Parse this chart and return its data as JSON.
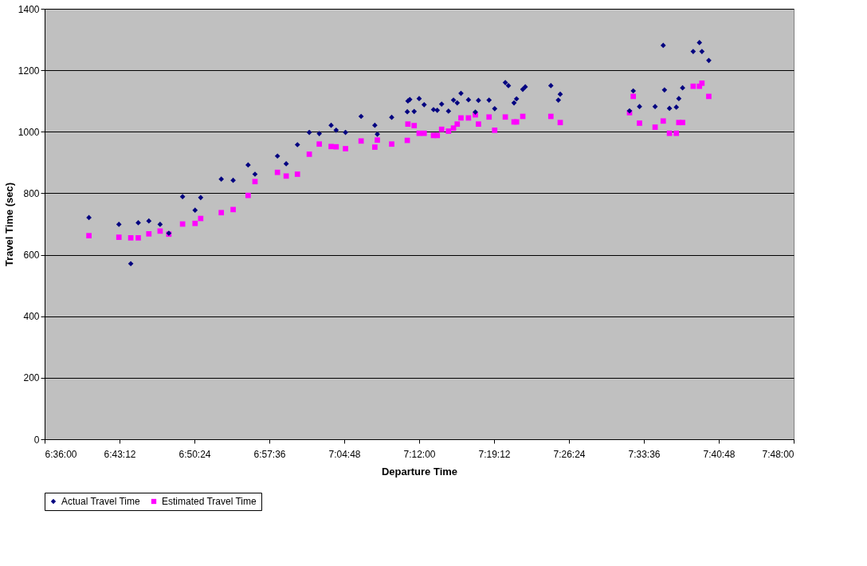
{
  "chart_data": {
    "type": "scatter",
    "xlabel": "Departure Time",
    "ylabel": "Travel Time (sec)",
    "xlim": [
      6.6,
      7.8
    ],
    "xticks": [
      {
        "value": 6.6,
        "label": "6:36:00"
      },
      {
        "value": 6.72,
        "label": "6:43:12"
      },
      {
        "value": 6.84,
        "label": "6:50:24"
      },
      {
        "value": 6.96,
        "label": "6:57:36"
      },
      {
        "value": 7.08,
        "label": "7:04:48"
      },
      {
        "value": 7.2,
        "label": "7:12:00"
      },
      {
        "value": 7.32,
        "label": "7:19:12"
      },
      {
        "value": 7.44,
        "label": "7:26:24"
      },
      {
        "value": 7.56,
        "label": "7:33:36"
      },
      {
        "value": 7.68,
        "label": "7:40:48"
      },
      {
        "value": 7.8,
        "label": "7:48:00"
      }
    ],
    "ylim": [
      0,
      1400
    ],
    "yticks": [
      0,
      200,
      400,
      600,
      800,
      1000,
      1200,
      1400
    ],
    "grid": "y",
    "legend": "bottom",
    "series": [
      {
        "name": "Actual Travel Time",
        "color": "#000080",
        "marker": "diamond",
        "x": [
          6.671,
          6.719,
          6.738,
          6.75,
          6.767,
          6.785,
          6.799,
          6.821,
          6.841,
          6.85,
          6.883,
          6.902,
          6.926,
          6.937,
          6.973,
          6.987,
          7.005,
          7.024,
          7.04,
          7.059,
          7.067,
          7.082,
          7.107,
          7.129,
          7.133,
          7.156,
          7.181,
          7.182,
          7.185,
          7.192,
          7.2,
          7.208,
          7.223,
          7.229,
          7.236,
          7.247,
          7.255,
          7.261,
          7.267,
          7.279,
          7.29,
          7.295,
          7.312,
          7.321,
          7.338,
          7.343,
          7.352,
          7.356,
          7.366,
          7.37,
          7.411,
          7.423,
          7.426,
          7.537,
          7.543,
          7.553,
          7.578,
          7.591,
          7.593,
          7.601,
          7.612,
          7.616,
          7.622,
          7.639,
          7.649,
          7.653,
          7.664
        ],
        "values": [
          721,
          699,
          571,
          704,
          710,
          699,
          670,
          789,
          745,
          786,
          846,
          842,
          892,
          862,
          921,
          896,
          958,
          998,
          994,
          1021,
          1005,
          998,
          1050,
          1021,
          992,
          1047,
          1065,
          1100,
          1105,
          1066,
          1108,
          1088,
          1072,
          1070,
          1090,
          1067,
          1103,
          1094,
          1125,
          1104,
          1064,
          1102,
          1103,
          1075,
          1160,
          1150,
          1094,
          1107,
          1138,
          1146,
          1150,
          1103,
          1122,
          1068,
          1133,
          1082,
          1082,
          1281,
          1136,
          1076,
          1080,
          1108,
          1143,
          1261,
          1290,
          1261,
          1232
        ]
      },
      {
        "name": "Estimated Travel Time",
        "color": "#ff00ff",
        "marker": "square",
        "x": [
          6.671,
          6.719,
          6.738,
          6.75,
          6.767,
          6.785,
          6.799,
          6.821,
          6.841,
          6.85,
          6.883,
          6.902,
          6.926,
          6.937,
          6.973,
          6.987,
          7.005,
          7.024,
          7.04,
          7.059,
          7.067,
          7.082,
          7.107,
          7.129,
          7.133,
          7.156,
          7.181,
          7.182,
          7.192,
          7.2,
          7.208,
          7.223,
          7.229,
          7.236,
          7.247,
          7.255,
          7.261,
          7.267,
          7.279,
          7.29,
          7.295,
          7.312,
          7.321,
          7.338,
          7.352,
          7.356,
          7.366,
          7.411,
          7.426,
          7.537,
          7.543,
          7.553,
          7.578,
          7.591,
          7.601,
          7.612,
          7.616,
          7.622,
          7.639,
          7.649,
          7.653,
          7.664
        ],
        "values": [
          662,
          657,
          655,
          655,
          668,
          677,
          667,
          700,
          702,
          718,
          737,
          747,
          793,
          838,
          868,
          856,
          862,
          927,
          960,
          952,
          951,
          945,
          970,
          950,
          973,
          960,
          972,
          1025,
          1020,
          995,
          995,
          988,
          988,
          1008,
          1002,
          1012,
          1025,
          1045,
          1045,
          1055,
          1025,
          1048,
          1005,
          1048,
          1032,
          1032,
          1050,
          1050,
          1030,
          1062,
          1115,
          1028,
          1015,
          1035,
          995,
          995,
          1030,
          1030,
          1148,
          1148,
          1158,
          1115
        ]
      }
    ]
  }
}
